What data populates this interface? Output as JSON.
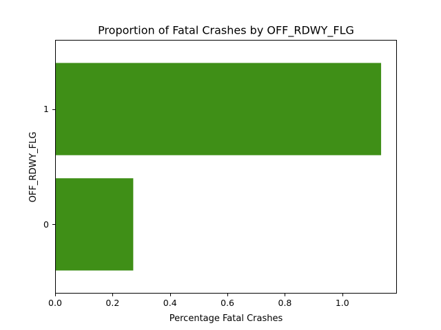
{
  "chart_data": {
    "type": "bar",
    "orientation": "horizontal",
    "title": "Proportion of Fatal Crashes by OFF_RDWY_FLG",
    "xlabel": "Percentage Fatal Crashes",
    "ylabel": "OFF_RDWY_FLG",
    "categories": [
      "0",
      "1"
    ],
    "values": [
      0.272,
      1.135
    ],
    "xlim": [
      0,
      1.19
    ],
    "xticks": [
      0.0,
      0.2,
      0.4,
      0.6,
      0.8,
      1.0
    ],
    "xtick_labels": [
      "0.0",
      "0.2",
      "0.4",
      "0.6",
      "0.8",
      "1.0"
    ],
    "bar_color": "#3f8f17",
    "grid": false,
    "legend": false
  }
}
